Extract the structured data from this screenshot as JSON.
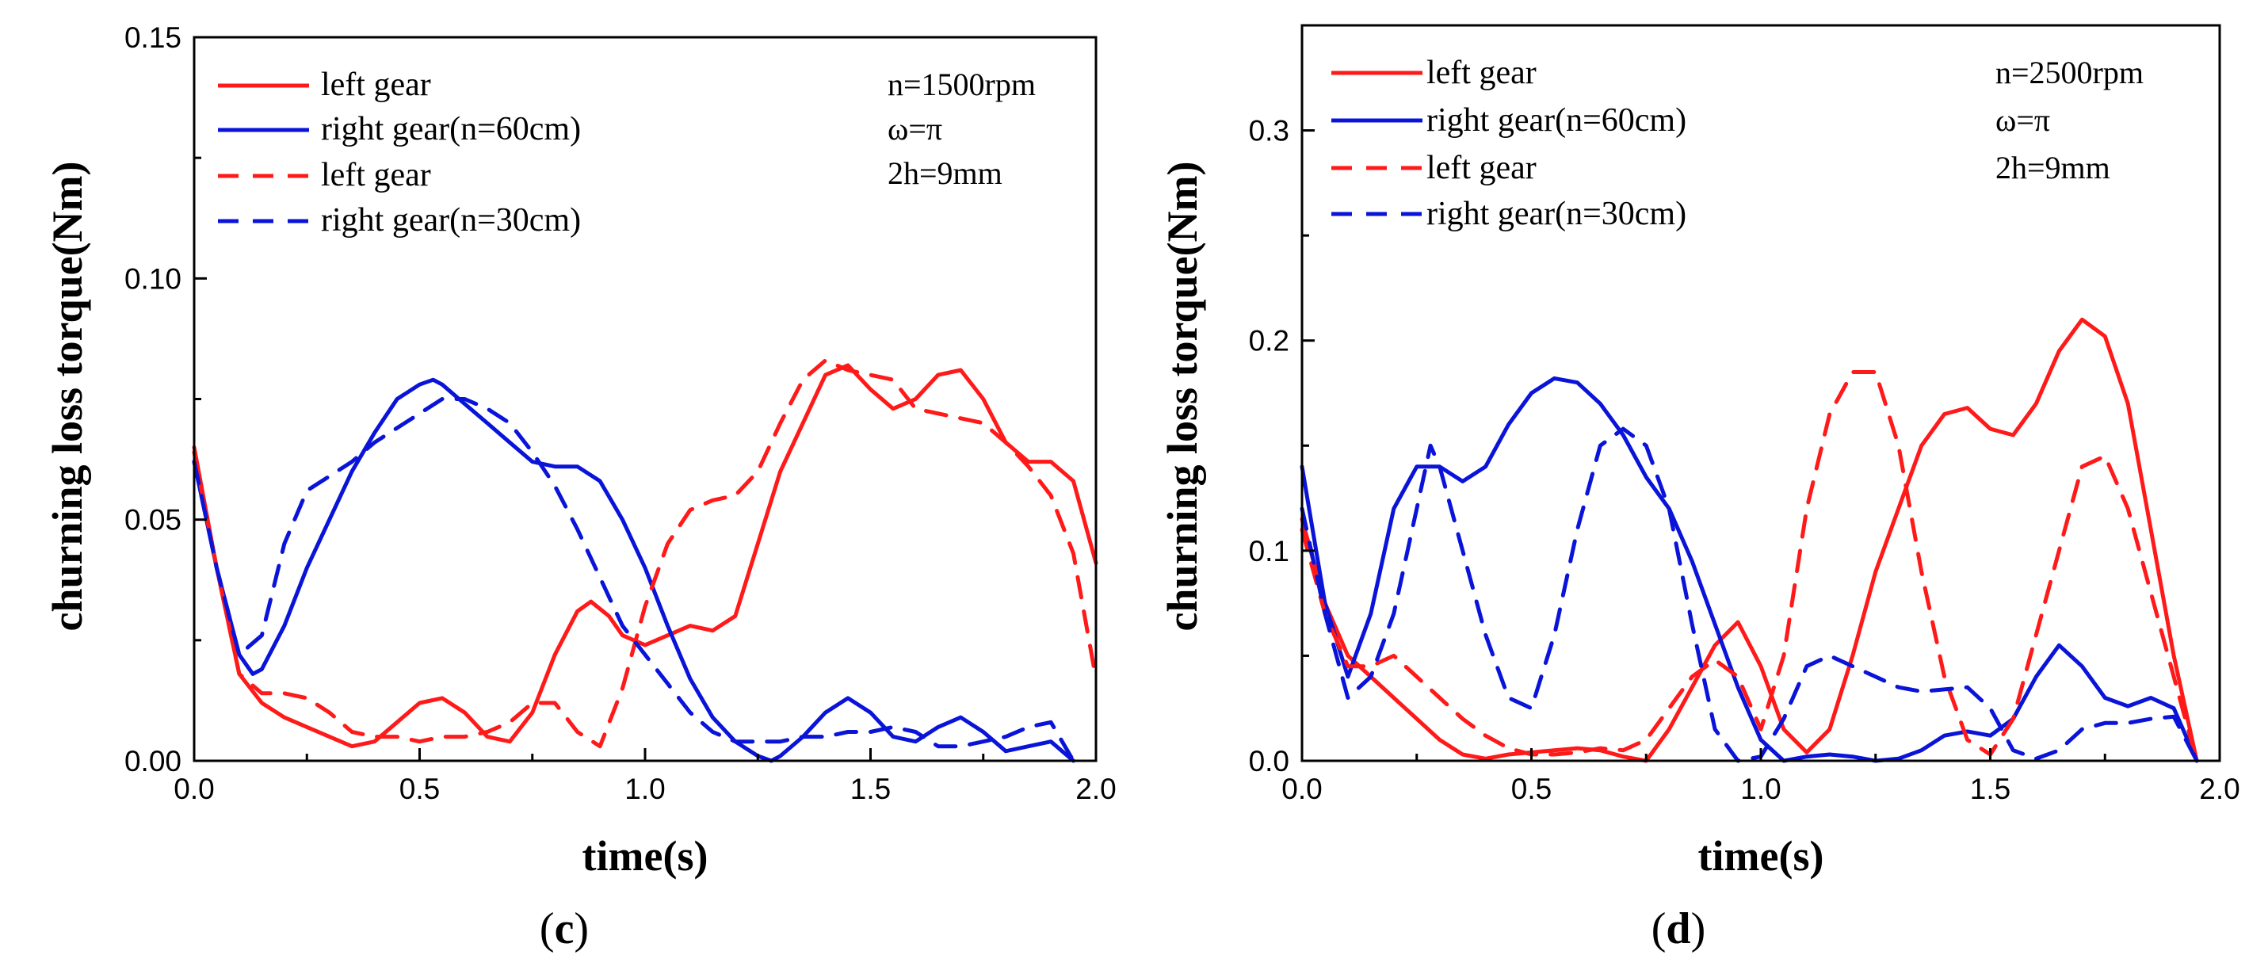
{
  "chart_data": [
    {
      "id": "c",
      "type": "line",
      "panel_label": "c",
      "xlabel": "time(s)",
      "ylabel": "churning loss torque(Nm)",
      "xlim": [
        0,
        2.0
      ],
      "ylim": [
        0,
        0.15
      ],
      "xticks": [
        "0.0",
        "0.5",
        "1.0",
        "1.5",
        "2.0"
      ],
      "yticks": [
        "0.00",
        "0.05",
        "0.10",
        "0.15"
      ],
      "xtick_values": [
        0,
        0.5,
        1.0,
        1.5,
        2.0
      ],
      "ytick_values": [
        0,
        0.05,
        0.1,
        0.15
      ],
      "annotations": [
        "n=1500rpm",
        "ω=π",
        "2h=9mm"
      ],
      "series": [
        {
          "name": "left gear",
          "color": "#ff1a1a",
          "dash": "solid",
          "x": [
            0,
            0.05,
            0.1,
            0.15,
            0.2,
            0.25,
            0.3,
            0.35,
            0.4,
            0.45,
            0.5,
            0.55,
            0.6,
            0.65,
            0.7,
            0.75,
            0.8,
            0.85,
            0.88,
            0.92,
            0.95,
            1.0,
            1.05,
            1.1,
            1.15,
            1.2,
            1.25,
            1.3,
            1.35,
            1.4,
            1.45,
            1.5,
            1.55,
            1.6,
            1.65,
            1.7,
            1.75,
            1.8,
            1.85,
            1.9,
            1.95,
            2.0
          ],
          "y": [
            0.065,
            0.04,
            0.018,
            0.012,
            0.009,
            0.007,
            0.005,
            0.003,
            0.004,
            0.008,
            0.012,
            0.013,
            0.01,
            0.005,
            0.004,
            0.01,
            0.022,
            0.031,
            0.033,
            0.03,
            0.026,
            0.024,
            0.026,
            0.028,
            0.027,
            0.03,
            0.045,
            0.06,
            0.07,
            0.08,
            0.082,
            0.077,
            0.073,
            0.075,
            0.08,
            0.081,
            0.075,
            0.066,
            0.062,
            0.062,
            0.058,
            0.041
          ]
        },
        {
          "name": "right gear(n=60cm)",
          "color": "#0a14d8",
          "dash": "solid",
          "x": [
            0,
            0.05,
            0.1,
            0.13,
            0.15,
            0.2,
            0.25,
            0.3,
            0.35,
            0.4,
            0.45,
            0.5,
            0.53,
            0.55,
            0.6,
            0.65,
            0.7,
            0.75,
            0.8,
            0.85,
            0.9,
            0.95,
            1.0,
            1.05,
            1.1,
            1.15,
            1.2,
            1.25,
            1.28,
            1.3,
            1.35,
            1.4,
            1.45,
            1.5,
            1.55,
            1.6,
            1.65,
            1.7,
            1.75,
            1.8,
            1.85,
            1.9,
            1.95
          ],
          "y": [
            0.062,
            0.04,
            0.022,
            0.018,
            0.019,
            0.028,
            0.04,
            0.05,
            0.06,
            0.068,
            0.075,
            0.078,
            0.079,
            0.078,
            0.074,
            0.07,
            0.066,
            0.062,
            0.061,
            0.061,
            0.058,
            0.05,
            0.04,
            0.028,
            0.017,
            0.009,
            0.004,
            0.001,
            0.0,
            0.001,
            0.005,
            0.01,
            0.013,
            0.01,
            0.005,
            0.004,
            0.007,
            0.009,
            0.006,
            0.002,
            0.003,
            0.004,
            0.0
          ]
        },
        {
          "name": "left gear",
          "color": "#ff1a1a",
          "dash": "dashed",
          "x": [
            0,
            0.05,
            0.1,
            0.15,
            0.2,
            0.25,
            0.3,
            0.35,
            0.4,
            0.45,
            0.5,
            0.55,
            0.6,
            0.65,
            0.7,
            0.75,
            0.8,
            0.85,
            0.9,
            0.95,
            1.0,
            1.05,
            1.1,
            1.15,
            1.2,
            1.25,
            1.3,
            1.35,
            1.4,
            1.45,
            1.5,
            1.55,
            1.6,
            1.65,
            1.7,
            1.75,
            1.8,
            1.85,
            1.9,
            1.95,
            2.0
          ],
          "y": [
            0.064,
            0.04,
            0.018,
            0.014,
            0.014,
            0.013,
            0.01,
            0.006,
            0.005,
            0.005,
            0.004,
            0.005,
            0.005,
            0.006,
            0.008,
            0.012,
            0.012,
            0.006,
            0.003,
            0.015,
            0.032,
            0.045,
            0.052,
            0.054,
            0.055,
            0.06,
            0.07,
            0.079,
            0.083,
            0.081,
            0.08,
            0.079,
            0.073,
            0.072,
            0.071,
            0.07,
            0.066,
            0.061,
            0.055,
            0.043,
            0.017
          ]
        },
        {
          "name": "right gear(n=30cm)",
          "color": "#0a14d8",
          "dash": "dashed",
          "x": [
            0,
            0.05,
            0.1,
            0.15,
            0.2,
            0.25,
            0.3,
            0.35,
            0.4,
            0.45,
            0.5,
            0.55,
            0.6,
            0.65,
            0.7,
            0.75,
            0.8,
            0.85,
            0.9,
            0.95,
            1.0,
            1.05,
            1.1,
            1.15,
            1.2,
            1.25,
            1.3,
            1.35,
            1.4,
            1.45,
            1.5,
            1.55,
            1.6,
            1.65,
            1.7,
            1.75,
            1.8,
            1.85,
            1.9,
            1.95
          ],
          "y": [
            0.062,
            0.04,
            0.022,
            0.026,
            0.045,
            0.056,
            0.059,
            0.062,
            0.066,
            0.069,
            0.072,
            0.075,
            0.075,
            0.073,
            0.07,
            0.064,
            0.057,
            0.048,
            0.038,
            0.028,
            0.022,
            0.016,
            0.01,
            0.006,
            0.004,
            0.004,
            0.004,
            0.005,
            0.005,
            0.006,
            0.006,
            0.007,
            0.006,
            0.003,
            0.003,
            0.004,
            0.005,
            0.007,
            0.008,
            0.0
          ]
        }
      ]
    },
    {
      "id": "d",
      "type": "line",
      "panel_label": "d",
      "xlabel": "time(s)",
      "ylabel": "churning loss torque(Nm)",
      "xlim": [
        0,
        2.0
      ],
      "ylim": [
        0,
        0.35
      ],
      "xticks": [
        "0.0",
        "0.5",
        "1.0",
        "1.5",
        "2.0"
      ],
      "yticks": [
        "0.0",
        "0.1",
        "0.2",
        "0.3"
      ],
      "xtick_values": [
        0,
        0.5,
        1.0,
        1.5,
        2.0
      ],
      "ytick_values": [
        0,
        0.1,
        0.2,
        0.3
      ],
      "annotations": [
        "n=2500rpm",
        "ω=π",
        "2h=9mm"
      ],
      "series": [
        {
          "name": "left gear",
          "color": "#ff1a1a",
          "dash": "solid",
          "x": [
            0,
            0.05,
            0.1,
            0.15,
            0.2,
            0.25,
            0.3,
            0.35,
            0.4,
            0.45,
            0.5,
            0.55,
            0.6,
            0.65,
            0.7,
            0.75,
            0.8,
            0.85,
            0.9,
            0.95,
            1.0,
            1.05,
            1.1,
            1.15,
            1.2,
            1.25,
            1.3,
            1.35,
            1.4,
            1.45,
            1.5,
            1.55,
            1.6,
            1.65,
            1.7,
            1.75,
            1.8,
            1.85,
            1.9,
            1.95
          ],
          "y": [
            0.115,
            0.075,
            0.05,
            0.04,
            0.03,
            0.02,
            0.01,
            0.003,
            0.001,
            0.003,
            0.004,
            0.005,
            0.006,
            0.005,
            0.002,
            0.0,
            0.015,
            0.035,
            0.055,
            0.066,
            0.045,
            0.015,
            0.004,
            0.015,
            0.05,
            0.09,
            0.12,
            0.15,
            0.165,
            0.168,
            0.158,
            0.155,
            0.17,
            0.195,
            0.21,
            0.202,
            0.17,
            0.11,
            0.05,
            0.0
          ]
        },
        {
          "name": "right gear(n=60cm)",
          "color": "#0a14d8",
          "dash": "solid",
          "x": [
            0,
            0.05,
            0.1,
            0.15,
            0.2,
            0.25,
            0.3,
            0.35,
            0.4,
            0.45,
            0.5,
            0.55,
            0.6,
            0.65,
            0.7,
            0.75,
            0.8,
            0.85,
            0.9,
            0.95,
            1.0,
            1.05,
            1.1,
            1.15,
            1.2,
            1.25,
            1.3,
            1.35,
            1.4,
            1.45,
            1.5,
            1.55,
            1.6,
            1.65,
            1.7,
            1.75,
            1.8,
            1.85,
            1.9,
            1.95
          ],
          "y": [
            0.14,
            0.075,
            0.04,
            0.07,
            0.12,
            0.14,
            0.14,
            0.133,
            0.14,
            0.16,
            0.175,
            0.182,
            0.18,
            0.17,
            0.155,
            0.135,
            0.12,
            0.095,
            0.065,
            0.035,
            0.01,
            0.0,
            0.002,
            0.003,
            0.002,
            0.0,
            0.001,
            0.005,
            0.012,
            0.014,
            0.012,
            0.02,
            0.04,
            0.055,
            0.045,
            0.03,
            0.026,
            0.03,
            0.025,
            0.0
          ]
        },
        {
          "name": "left gear",
          "color": "#ff1a1a",
          "dash": "dashed",
          "x": [
            0,
            0.05,
            0.1,
            0.15,
            0.2,
            0.25,
            0.3,
            0.35,
            0.4,
            0.45,
            0.5,
            0.55,
            0.6,
            0.65,
            0.7,
            0.75,
            0.8,
            0.85,
            0.9,
            0.95,
            1.0,
            1.05,
            1.1,
            1.15,
            1.2,
            1.25,
            1.3,
            1.35,
            1.4,
            1.45,
            1.5,
            1.55,
            1.6,
            1.65,
            1.7,
            1.75,
            1.8,
            1.85,
            1.9,
            1.95
          ],
          "y": [
            0.11,
            0.07,
            0.045,
            0.045,
            0.05,
            0.04,
            0.03,
            0.02,
            0.012,
            0.006,
            0.003,
            0.003,
            0.004,
            0.006,
            0.005,
            0.01,
            0.025,
            0.04,
            0.048,
            0.04,
            0.015,
            0.05,
            0.12,
            0.165,
            0.185,
            0.185,
            0.15,
            0.09,
            0.04,
            0.01,
            0.003,
            0.02,
            0.06,
            0.1,
            0.14,
            0.145,
            0.12,
            0.08,
            0.04,
            0.0
          ]
        },
        {
          "name": "right gear(n=30cm)",
          "color": "#0a14d8",
          "dash": "dashed",
          "x": [
            0,
            0.05,
            0.1,
            0.15,
            0.2,
            0.25,
            0.28,
            0.3,
            0.35,
            0.4,
            0.45,
            0.5,
            0.55,
            0.6,
            0.65,
            0.7,
            0.75,
            0.8,
            0.85,
            0.9,
            0.95,
            1.0,
            1.05,
            1.1,
            1.15,
            1.2,
            1.25,
            1.3,
            1.35,
            1.4,
            1.45,
            1.5,
            1.55,
            1.6,
            1.65,
            1.7,
            1.75,
            1.8,
            1.85,
            1.9,
            1.95
          ],
          "y": [
            0.12,
            0.07,
            0.03,
            0.04,
            0.07,
            0.12,
            0.15,
            0.14,
            0.1,
            0.06,
            0.03,
            0.025,
            0.06,
            0.11,
            0.15,
            0.158,
            0.15,
            0.12,
            0.065,
            0.015,
            0.0,
            0.002,
            0.02,
            0.045,
            0.05,
            0.045,
            0.04,
            0.035,
            0.033,
            0.034,
            0.035,
            0.025,
            0.005,
            0.001,
            0.005,
            0.015,
            0.018,
            0.018,
            0.02,
            0.021,
            0.0
          ]
        }
      ]
    }
  ]
}
